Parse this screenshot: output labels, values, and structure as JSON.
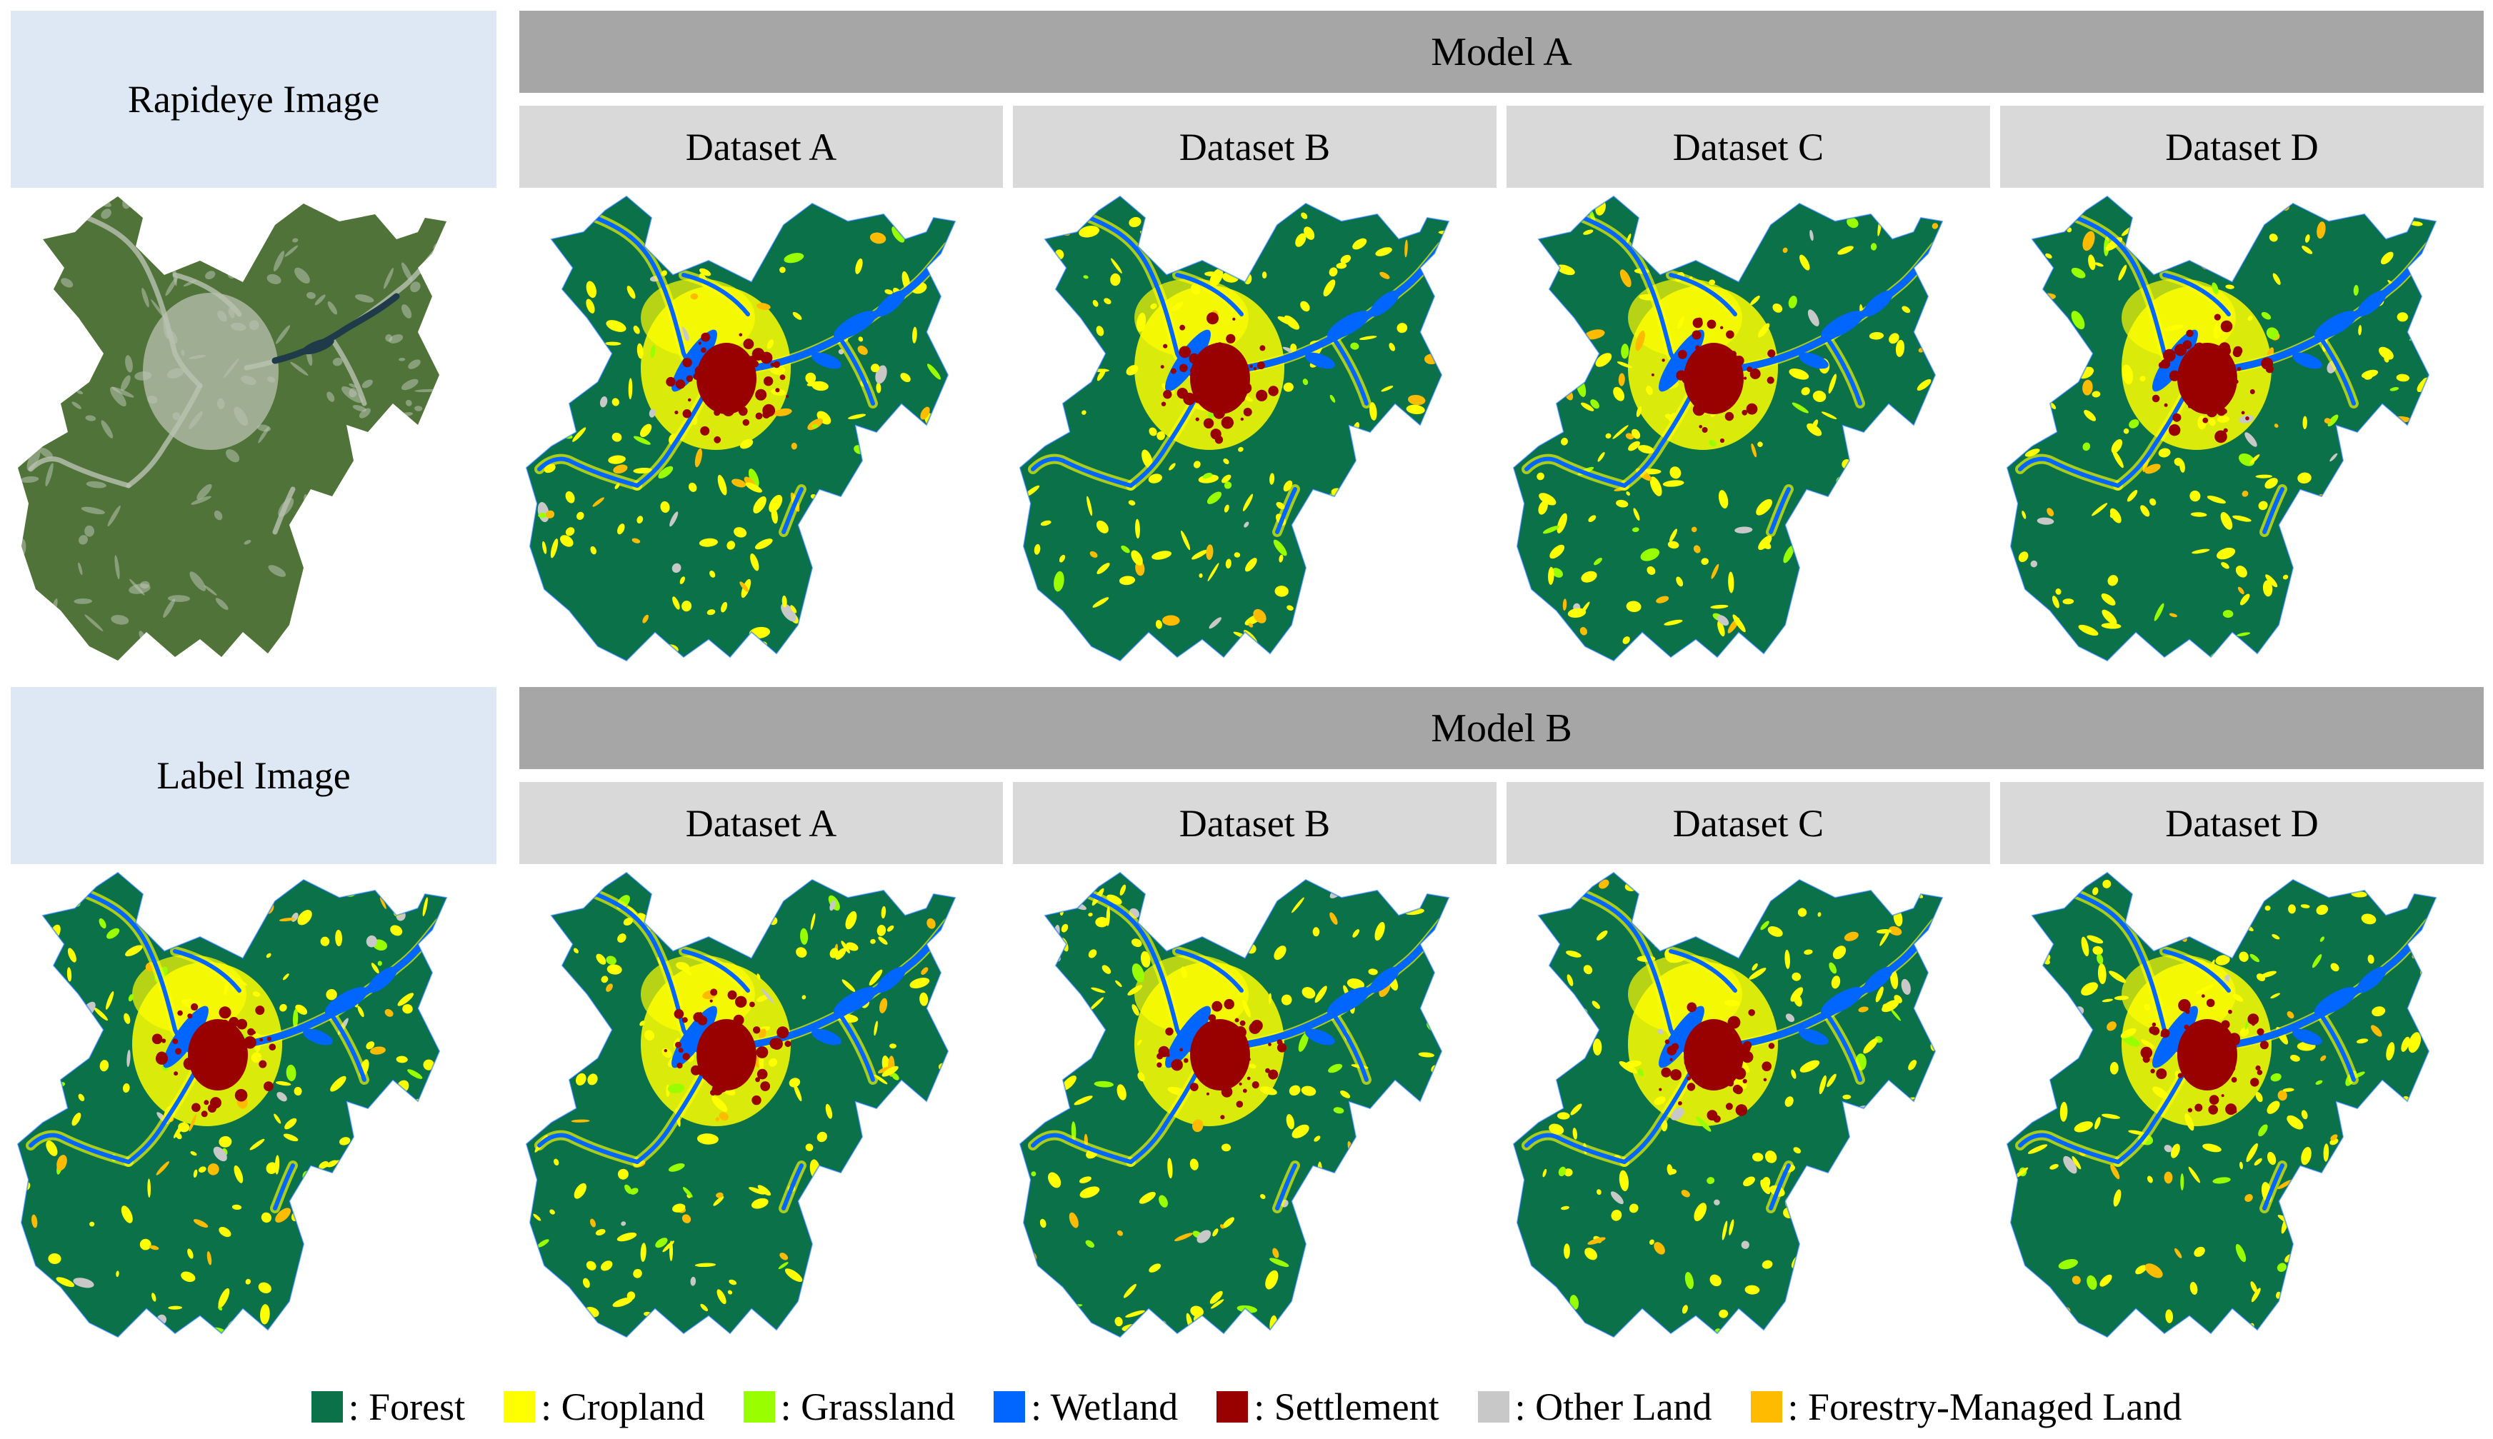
{
  "top": {
    "side_label": "Rapideye Image",
    "model_label": "Model A",
    "datasets": [
      "Dataset A",
      "Dataset B",
      "Dataset C",
      "Dataset D"
    ]
  },
  "bottom": {
    "side_label": "Label Image",
    "model_label": "Model B",
    "datasets": [
      "Dataset A",
      "Dataset B",
      "Dataset C",
      "Dataset D"
    ]
  },
  "legend": [
    {
      "label": ": Forest",
      "color": "#0b7148"
    },
    {
      "label": ": Cropland",
      "color": "#ffff00"
    },
    {
      "label": ": Grassland",
      "color": "#99ff00"
    },
    {
      "label": ": Wetland",
      "color": "#0066ff"
    },
    {
      "label": ": Settlement",
      "color": "#990000"
    },
    {
      "label": ": Other Land",
      "color": "#c8c8c8"
    },
    {
      "label": ": Forestry-Managed Land",
      "color": "#ffbb00"
    }
  ],
  "satellite_colors": {
    "base": "#4f7338",
    "light": "#b9c2b2",
    "water": "#1f3a48"
  }
}
